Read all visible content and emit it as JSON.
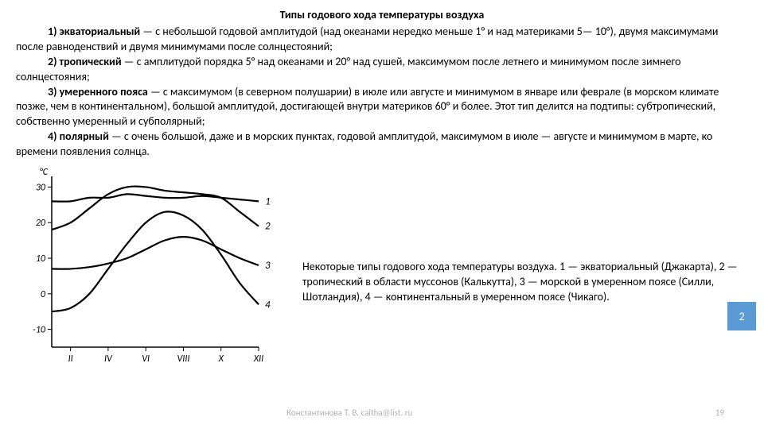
{
  "title": "Типы годового хода температуры воздуха",
  "paragraphs": {
    "p1_label": "1) экваториальный",
    "p1_text": " — с небольшой годовой амплитудой (над океанами нередко меньше 1° и над материками 5— 10°), двумя максимумами после равноденствий и двумя минимумами после солнцестояний;",
    "p2_label": "2) тропический",
    "p2_text": " — с амплитудой порядка 5° над океанами и 20° над сушей, максимумом после летнего и минимумом после зимнего солнцестояния;",
    "p3_label": "3) умеренного пояса",
    "p3_text": " — с максимумом (в северном полушарии) в июле или августе и минимумом в январе или феврале (в морском климате позже, чем в континентальном), большой амплитудой, достигающей внутри материков 60° и более. Этот тип делится на подтипы: субтропический, собственно умеренный и субполярный;",
    "p4_label": "4) полярный",
    "p4_text": " — с очень большой, даже и в морских пунктах, годовой амплитудой, максимумом в июле — августе и минимумом в марте, ко времени появления солнца."
  },
  "chart": {
    "y_unit": "°C",
    "y_ticks": [
      -10,
      0,
      10,
      20,
      30
    ],
    "x_ticks": [
      "II",
      "IV",
      "VI",
      "VIII",
      "X",
      "XII"
    ],
    "series_labels": [
      "1",
      "2",
      "3",
      "4"
    ],
    "axis_color": "#000000",
    "line_color": "#000000",
    "line_width": 2.2,
    "background": "#ffffff",
    "xlim": [
      1,
      12
    ],
    "ylim": [
      -15,
      33
    ],
    "series": {
      "s1": [
        [
          1,
          26
        ],
        [
          2,
          26
        ],
        [
          3,
          27
        ],
        [
          4,
          27
        ],
        [
          5,
          28
        ],
        [
          6,
          27.5
        ],
        [
          7,
          27
        ],
        [
          8,
          27
        ],
        [
          9,
          27.5
        ],
        [
          10,
          27
        ],
        [
          11,
          26.5
        ],
        [
          12,
          26
        ]
      ],
      "s2": [
        [
          1,
          18
        ],
        [
          2,
          20
        ],
        [
          3,
          24
        ],
        [
          4,
          28
        ],
        [
          5,
          30
        ],
        [
          6,
          30
        ],
        [
          7,
          29
        ],
        [
          8,
          28.5
        ],
        [
          9,
          28
        ],
        [
          10,
          27
        ],
        [
          11,
          23
        ],
        [
          12,
          19
        ]
      ],
      "s3": [
        [
          1,
          7
        ],
        [
          2,
          7
        ],
        [
          3,
          7.5
        ],
        [
          4,
          8.5
        ],
        [
          5,
          10
        ],
        [
          6,
          12.5
        ],
        [
          7,
          15
        ],
        [
          8,
          16
        ],
        [
          9,
          15
        ],
        [
          10,
          12.5
        ],
        [
          11,
          10
        ],
        [
          12,
          8
        ]
      ],
      "s4": [
        [
          1,
          -5
        ],
        [
          2,
          -4
        ],
        [
          3,
          0
        ],
        [
          4,
          7
        ],
        [
          5,
          14
        ],
        [
          6,
          20
        ],
        [
          7,
          23
        ],
        [
          8,
          22
        ],
        [
          9,
          18
        ],
        [
          10,
          11
        ],
        [
          11,
          3
        ],
        [
          12,
          -3
        ]
      ]
    }
  },
  "caption": "Некоторые типы годового хода температуры воздуха. 1 — экваториальный (Джакарта), 2 — тропический в области муссонов (Калькутта), 3 — морской в умеренном поясе (Силли, Шотландия), 4 — континентальный в умеренном поясе (Чикаго).",
  "badge": "2",
  "footer_author": "Константинова Т. В. caltha@list. ru",
  "footer_page": "19"
}
